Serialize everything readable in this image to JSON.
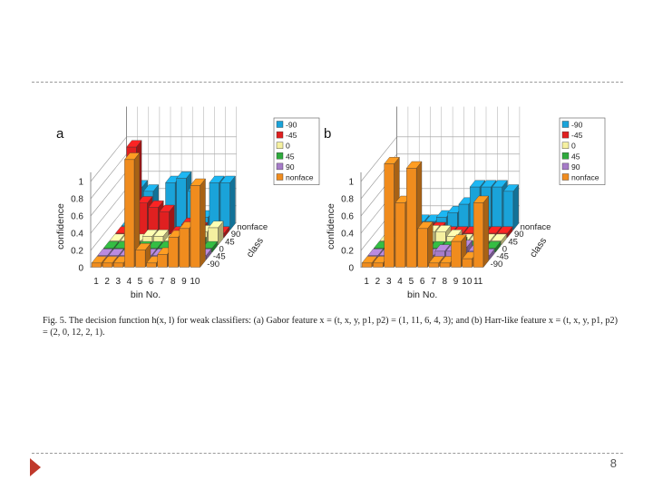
{
  "slide": {
    "caption": "Fig. 5. The decision function h(x, l) for weak classifiers: (a) Gabor feature x = (t, x, y, p1, p2) = (1, 11, 6, 4, 3); and (b) Harr-like feature x = (t, x, y, p1, p2) = (2, 0, 12, 2, 1).",
    "page_number": "8"
  },
  "colors": {
    "-90": "#1aa3d9",
    "-45": "#e02020",
    "0": "#f5f0a0",
    "45": "#2eaa3c",
    "90": "#a67cc8",
    "nonface": "#f08c1e"
  },
  "chart_data": [
    {
      "type": "bar3d",
      "panel_label": "a",
      "xlabel": "bin No.",
      "ylabel": "confidence",
      "depth_label": "class",
      "bins": [
        "1",
        "2",
        "3",
        "4",
        "5",
        "6",
        "7",
        "8",
        "9",
        "10"
      ],
      "yticks": [
        "0",
        "0.2",
        "0.4",
        "0.6",
        "0.8",
        "1"
      ],
      "depth_ticks": [
        "nonface",
        "90",
        "45",
        "0",
        "-45",
        "-90"
      ],
      "legend": [
        "-90",
        "-45",
        "0",
        "45",
        "90",
        "nonface"
      ],
      "legend_position": "top-right",
      "ylim": [
        0,
        1
      ],
      "series": [
        {
          "name": "-90",
          "values": [
            0.05,
            0.5,
            0.45,
            0.2,
            0.55,
            0.6,
            0.45,
            0.15,
            0.55,
            0.55
          ]
        },
        {
          "name": "-45",
          "values": [
            0.05,
            1.05,
            0.4,
            0.35,
            0.3,
            0.05,
            0.15,
            0.1,
            0.05,
            0.05
          ]
        },
        {
          "name": "0",
          "values": [
            0.05,
            0.05,
            0.05,
            0.1,
            0.1,
            0.05,
            0.05,
            0.1,
            0.15,
            0.2
          ]
        },
        {
          "name": "45",
          "values": [
            0.05,
            0.05,
            0.05,
            0.05,
            0.05,
            0.05,
            0.1,
            0.05,
            0.1,
            0.05
          ]
        },
        {
          "name": "90",
          "values": [
            0.05,
            0.05,
            0.05,
            0.05,
            0.05,
            0.05,
            0.05,
            0.15,
            0.05,
            0.05
          ]
        },
        {
          "name": "nonface",
          "values": [
            0.05,
            0.05,
            0.05,
            1.25,
            0.2,
            0.05,
            0.15,
            0.35,
            0.45,
            0.95
          ]
        }
      ]
    },
    {
      "type": "bar3d",
      "panel_label": "b",
      "xlabel": "bin No.",
      "ylabel": "confidence",
      "depth_label": "class",
      "bins": [
        "1",
        "2",
        "3",
        "4",
        "5",
        "6",
        "7",
        "8",
        "9",
        "10",
        "11"
      ],
      "yticks": [
        "0",
        "0.2",
        "0.4",
        "0.6",
        "0.8",
        "1"
      ],
      "depth_ticks": [
        "nonface",
        "90",
        "45",
        "0",
        "-45",
        "-90"
      ],
      "legend": [
        "-90",
        "-45",
        "0",
        "45",
        "90",
        "nonface"
      ],
      "legend_position": "top-right",
      "ylim": [
        0,
        1
      ],
      "series": [
        {
          "name": "-90",
          "values": [
            0.1,
            0.1,
            0.1,
            0.1,
            0.15,
            0.2,
            0.3,
            0.5,
            0.5,
            0.5,
            0.45
          ]
        },
        {
          "name": "-45",
          "values": [
            0.1,
            0.1,
            0.1,
            0.1,
            0.1,
            0.05,
            0.05,
            0.05,
            0.05,
            0.05,
            0.05
          ]
        },
        {
          "name": "0",
          "values": [
            0.05,
            0.05,
            0.05,
            0.1,
            0.15,
            0.15,
            0.1,
            0.05,
            0.05,
            0.05,
            0.05
          ]
        },
        {
          "name": "45",
          "values": [
            0.05,
            0.05,
            0.45,
            0.1,
            0.05,
            0.05,
            0.05,
            0.1,
            0.05,
            0.05,
            0.05
          ]
        },
        {
          "name": "90",
          "values": [
            0.05,
            0.05,
            0.05,
            0.05,
            0.05,
            0.05,
            0.1,
            0.1,
            0.15,
            0.1,
            0.05
          ]
        },
        {
          "name": "nonface",
          "values": [
            0.05,
            0.05,
            1.2,
            0.75,
            1.15,
            0.45,
            0.05,
            0.05,
            0.3,
            0.1,
            0.75
          ]
        }
      ]
    }
  ]
}
